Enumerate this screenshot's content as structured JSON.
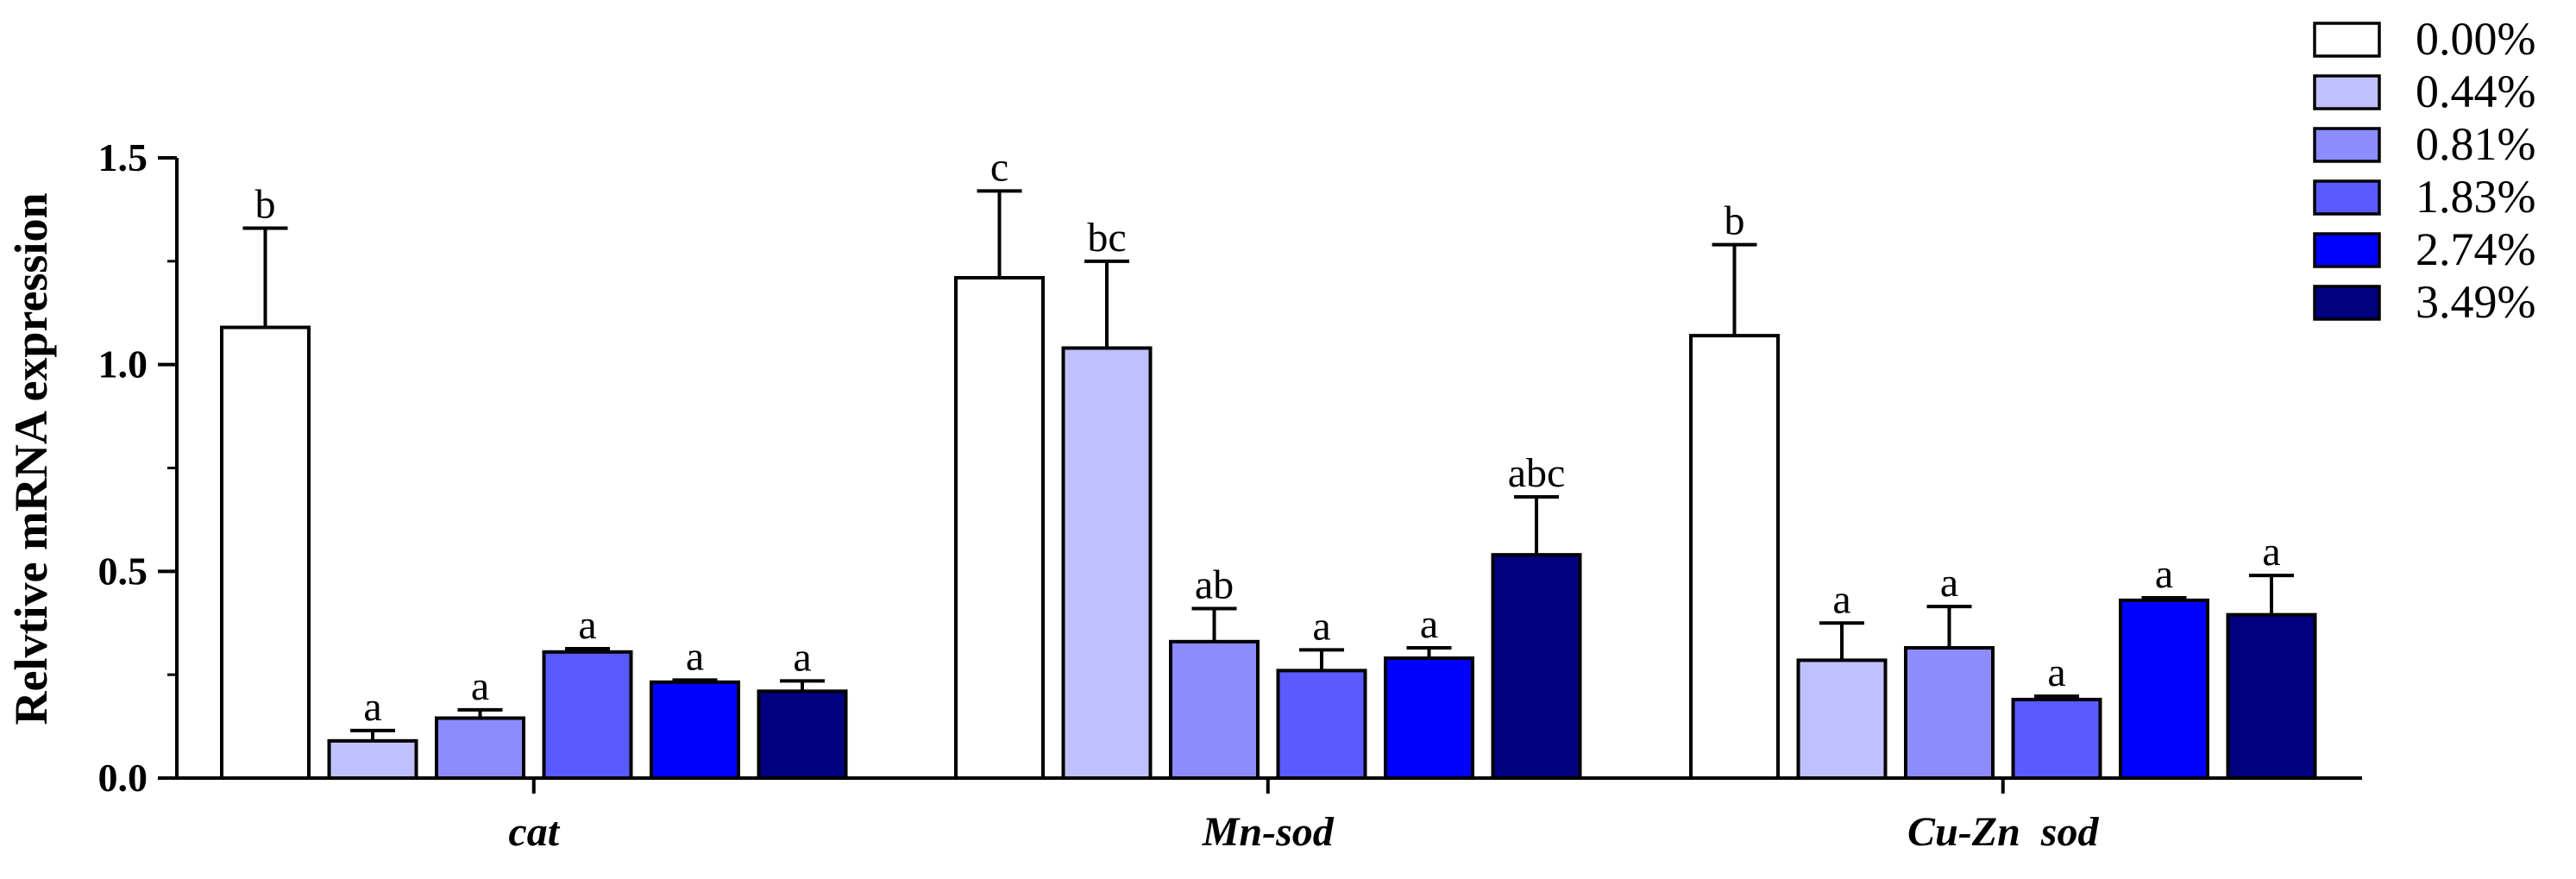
{
  "chart_data": {
    "type": "bar",
    "ylabel": "Relvtive mRNA expression",
    "ylim": [
      0,
      1.5
    ],
    "yticks": [
      "0.0",
      "0.5",
      "1.0",
      "1.5"
    ],
    "categories": [
      "cat",
      "Mn-sod",
      "Cu-Zn  sod"
    ],
    "legend_position": "top-right",
    "series": [
      {
        "name": "0.00%",
        "color": "#ffffff",
        "values": [
          1.09,
          1.21,
          1.07
        ],
        "errors": [
          0.24,
          0.21,
          0.22
        ],
        "labels": [
          "b",
          "c",
          "b"
        ]
      },
      {
        "name": "0.44%",
        "color": "#c0c0ff",
        "values": [
          0.09,
          1.04,
          0.285
        ],
        "errors": [
          0.025,
          0.21,
          0.09
        ],
        "labels": [
          "a",
          "bc",
          "a"
        ]
      },
      {
        "name": "0.81%",
        "color": "#8c8cff",
        "values": [
          0.145,
          0.33,
          0.315
        ],
        "errors": [
          0.02,
          0.08,
          0.1
        ],
        "labels": [
          "a",
          "ab",
          "a"
        ]
      },
      {
        "name": "1.83%",
        "color": "#5a5aff",
        "values": [
          0.305,
          0.26,
          0.19
        ],
        "errors": [
          0.008,
          0.05,
          0.008
        ],
        "labels": [
          "a",
          "a",
          "a"
        ]
      },
      {
        "name": "2.74%",
        "color": "#0000ff",
        "values": [
          0.232,
          0.29,
          0.43
        ],
        "errors": [
          0.005,
          0.025,
          0.006
        ],
        "labels": [
          "a",
          "a",
          "a"
        ]
      },
      {
        "name": "3.49%",
        "color": "#000080",
        "values": [
          0.21,
          0.54,
          0.395
        ],
        "errors": [
          0.025,
          0.14,
          0.095
        ],
        "labels": [
          "a",
          "abc",
          "a"
        ]
      }
    ]
  }
}
